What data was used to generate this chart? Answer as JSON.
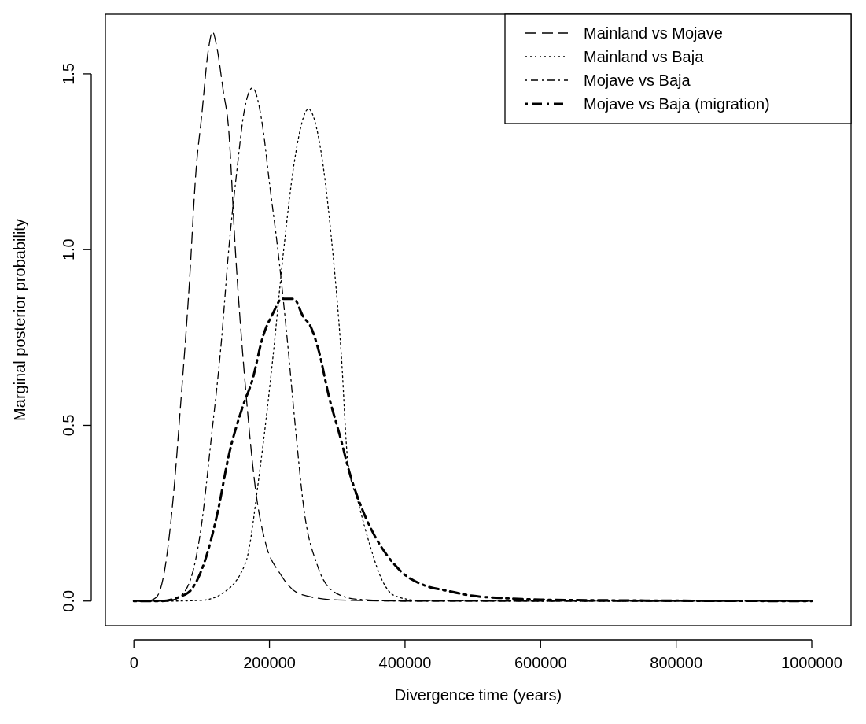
{
  "chart_data": {
    "type": "line",
    "xlabel": "Divergence time (years)",
    "ylabel": "Marginal posterior probability",
    "xlim": [
      -42000,
      1058000
    ],
    "ylim": [
      -0.07,
      1.67
    ],
    "xticks": [
      0,
      200000,
      400000,
      600000,
      800000,
      1000000
    ],
    "yticks": [
      {
        "value": 0,
        "label": "0.0"
      },
      {
        "value": 0.5,
        "label": "0.5"
      },
      {
        "value": 1,
        "label": "1.0"
      },
      {
        "value": 1.5,
        "label": "1.5"
      }
    ],
    "grid": false,
    "legend": "top right",
    "marker": "none",
    "series": [
      {
        "name": "Mainland vs Mojave",
        "color": "#000000",
        "line_style": "dashed",
        "x": [
          0,
          20000,
          32800,
          43700,
          58800,
          68600,
          81400,
          91900,
          100000,
          110000,
          116000,
          122000,
          132000,
          139500,
          150000,
          165000,
          180000,
          195000,
          215000,
          245000,
          300000,
          400000,
          600000,
          800000,
          1000000
        ],
        "values": [
          0,
          0,
          0.01,
          0.07,
          0.31,
          0.55,
          0.89,
          1.23,
          1.38,
          1.57,
          1.62,
          1.58,
          1.45,
          1.35,
          0.99,
          0.6,
          0.31,
          0.16,
          0.08,
          0.02,
          0.003,
          0,
          0,
          0,
          0
        ]
      },
      {
        "name": "Mainland vs Baja",
        "color": "#000000",
        "line_style": "dotted",
        "x": [
          0,
          60000,
          100000,
          129000,
          165000,
          185000,
          205500,
          220500,
          238400,
          257500,
          276000,
          291000,
          306000,
          315500,
          331000,
          346500,
          366000,
          385000,
          420000,
          600000,
          800000,
          1000000
        ],
        "values": [
          0,
          0,
          0.002,
          0.02,
          0.11,
          0.36,
          0.7,
          0.99,
          1.27,
          1.4,
          1.28,
          1.04,
          0.7,
          0.4,
          0.28,
          0.17,
          0.06,
          0.015,
          0.002,
          0,
          0,
          0
        ]
      },
      {
        "name": "Mojave vs Baja",
        "color": "#000000",
        "line_style": "dashdot",
        "x": [
          0,
          40000,
          60000,
          79000,
          99300,
          114000,
          129600,
          139500,
          152300,
          162400,
          175000,
          190000,
          200000,
          213000,
          226000,
          238000,
          251000,
          271000,
          296000,
          330000,
          400000,
          600000,
          800000,
          1000000
        ],
        "values": [
          0,
          0,
          0.005,
          0.04,
          0.21,
          0.46,
          0.75,
          0.99,
          1.23,
          1.39,
          1.46,
          1.35,
          1.19,
          0.99,
          0.75,
          0.5,
          0.26,
          0.1,
          0.025,
          0.005,
          0,
          0,
          0,
          0
        ]
      },
      {
        "name": "Mojave vs Baja (migration)",
        "color": "#000000",
        "line_style": "heavydashdot",
        "x": [
          0,
          40000,
          68600,
          83700,
          104000,
          124400,
          139500,
          160000,
          175000,
          190000,
          205500,
          218600,
          236000,
          249600,
          261000,
          273000,
          288000,
          304000,
          319000,
          335000,
          354000,
          373600,
          396500,
          428000,
          460000,
          500000,
          550000,
          600000,
          700000,
          800000,
          1000000
        ],
        "values": [
          0,
          0,
          0.013,
          0.03,
          0.11,
          0.26,
          0.41,
          0.55,
          0.63,
          0.75,
          0.82,
          0.86,
          0.86,
          0.81,
          0.78,
          0.71,
          0.58,
          0.47,
          0.36,
          0.27,
          0.19,
          0.13,
          0.08,
          0.045,
          0.03,
          0.015,
          0.008,
          0.004,
          0.002,
          0.001,
          0
        ]
      }
    ]
  }
}
